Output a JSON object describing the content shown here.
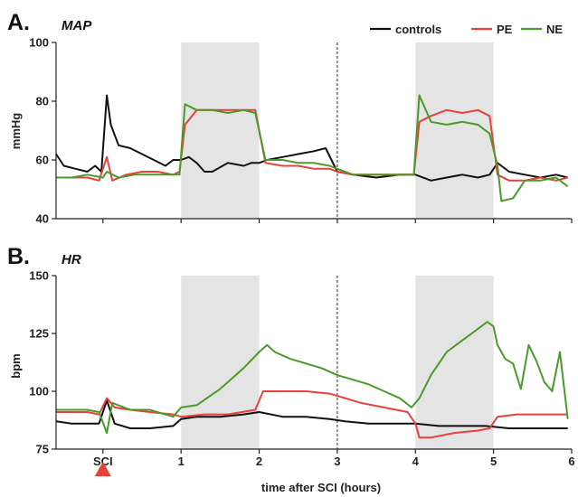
{
  "chart_data": [
    {
      "type": "line",
      "panel_letter": "A.",
      "title": "MAP",
      "ylabel": "mmHg",
      "xlabel": "",
      "xlim": [
        -0.6,
        6
      ],
      "ylim": [
        40,
        100
      ],
      "yticks": [
        40,
        60,
        80,
        100
      ],
      "xticks": [
        {
          "value": 0,
          "label": ""
        },
        {
          "value": 1,
          "label": ""
        },
        {
          "value": 2,
          "label": ""
        },
        {
          "value": 3,
          "label": ""
        },
        {
          "value": 4,
          "label": ""
        },
        {
          "value": 5,
          "label": ""
        },
        {
          "value": 6,
          "label": ""
        }
      ],
      "shaded_x_ranges": [
        [
          1,
          2
        ],
        [
          4,
          5
        ]
      ],
      "dashed_vline_x": 3,
      "legend": {
        "placement": "top-right",
        "entries": [
          "controls",
          "PE",
          "NE"
        ]
      },
      "series": [
        {
          "name": "controls",
          "color": "#111111",
          "points": [
            [
              -0.6,
              62
            ],
            [
              -0.5,
              58
            ],
            [
              -0.35,
              57
            ],
            [
              -0.2,
              56
            ],
            [
              -0.1,
              58
            ],
            [
              -0.02,
              56
            ],
            [
              0.05,
              82
            ],
            [
              0.1,
              72
            ],
            [
              0.2,
              65
            ],
            [
              0.35,
              64
            ],
            [
              0.5,
              62
            ],
            [
              0.65,
              60
            ],
            [
              0.8,
              58
            ],
            [
              0.9,
              60
            ],
            [
              1.0,
              60
            ],
            [
              1.1,
              61
            ],
            [
              1.2,
              59
            ],
            [
              1.3,
              56
            ],
            [
              1.4,
              56
            ],
            [
              1.6,
              59
            ],
            [
              1.8,
              58
            ],
            [
              1.9,
              59
            ],
            [
              2.0,
              59
            ],
            [
              2.1,
              60
            ],
            [
              2.3,
              61
            ],
            [
              2.5,
              62
            ],
            [
              2.7,
              63
            ],
            [
              2.85,
              64
            ],
            [
              3.0,
              56
            ],
            [
              3.2,
              55
            ],
            [
              3.5,
              54
            ],
            [
              3.8,
              55
            ],
            [
              4.0,
              55
            ],
            [
              4.2,
              53
            ],
            [
              4.4,
              54
            ],
            [
              4.6,
              55
            ],
            [
              4.8,
              54
            ],
            [
              4.95,
              55
            ],
            [
              5.05,
              59
            ],
            [
              5.2,
              56
            ],
            [
              5.4,
              55
            ],
            [
              5.6,
              54
            ],
            [
              5.8,
              55
            ],
            [
              5.95,
              54
            ]
          ]
        },
        {
          "name": "PE",
          "color": "#e8413a",
          "points": [
            [
              -0.6,
              54
            ],
            [
              -0.4,
              54
            ],
            [
              -0.2,
              54
            ],
            [
              -0.05,
              53
            ],
            [
              0.05,
              61
            ],
            [
              0.12,
              53
            ],
            [
              0.3,
              55
            ],
            [
              0.5,
              56
            ],
            [
              0.7,
              56
            ],
            [
              0.9,
              55
            ],
            [
              0.98,
              56
            ],
            [
              1.05,
              72
            ],
            [
              1.2,
              77
            ],
            [
              1.4,
              77
            ],
            [
              1.6,
              77
            ],
            [
              1.8,
              77
            ],
            [
              1.95,
              77
            ],
            [
              2.08,
              59
            ],
            [
              2.3,
              58
            ],
            [
              2.5,
              58
            ],
            [
              2.7,
              57
            ],
            [
              2.9,
              57
            ],
            [
              3.0,
              56
            ],
            [
              3.2,
              55
            ],
            [
              3.5,
              55
            ],
            [
              3.8,
              55
            ],
            [
              3.98,
              55
            ],
            [
              4.05,
              73
            ],
            [
              4.2,
              75
            ],
            [
              4.4,
              77
            ],
            [
              4.6,
              76
            ],
            [
              4.8,
              77
            ],
            [
              4.95,
              75
            ],
            [
              5.05,
              55
            ],
            [
              5.2,
              53
            ],
            [
              5.4,
              53
            ],
            [
              5.6,
              54
            ],
            [
              5.8,
              53
            ],
            [
              5.95,
              54
            ]
          ]
        },
        {
          "name": "NE",
          "color": "#4a9a2a",
          "points": [
            [
              -0.6,
              54
            ],
            [
              -0.4,
              54
            ],
            [
              -0.2,
              55
            ],
            [
              0.0,
              54
            ],
            [
              0.05,
              56
            ],
            [
              0.2,
              54
            ],
            [
              0.4,
              55
            ],
            [
              0.6,
              55
            ],
            [
              0.8,
              55
            ],
            [
              0.98,
              55
            ],
            [
              1.05,
              79
            ],
            [
              1.2,
              77
            ],
            [
              1.4,
              77
            ],
            [
              1.6,
              76
            ],
            [
              1.8,
              77
            ],
            [
              1.95,
              76
            ],
            [
              2.08,
              60
            ],
            [
              2.3,
              60
            ],
            [
              2.5,
              59
            ],
            [
              2.7,
              59
            ],
            [
              2.9,
              58
            ],
            [
              3.0,
              57
            ],
            [
              3.2,
              55
            ],
            [
              3.5,
              55
            ],
            [
              3.8,
              55
            ],
            [
              3.98,
              55
            ],
            [
              4.05,
              82
            ],
            [
              4.2,
              73
            ],
            [
              4.4,
              72
            ],
            [
              4.6,
              73
            ],
            [
              4.8,
              72
            ],
            [
              4.95,
              69
            ],
            [
              5.05,
              58
            ],
            [
              5.1,
              46
            ],
            [
              5.25,
              47
            ],
            [
              5.4,
              53
            ],
            [
              5.6,
              53
            ],
            [
              5.8,
              54
            ],
            [
              5.95,
              51
            ]
          ]
        }
      ]
    },
    {
      "type": "line",
      "panel_letter": "B.",
      "title": "HR",
      "ylabel": "bpm",
      "xlabel": "time after SCI (hours)",
      "xlim": [
        -0.6,
        6
      ],
      "ylim": [
        75,
        150
      ],
      "yticks": [
        75,
        100,
        125,
        150
      ],
      "xticks": [
        {
          "value": 0,
          "label": "SCI"
        },
        {
          "value": 1,
          "label": "1"
        },
        {
          "value": 2,
          "label": "2"
        },
        {
          "value": 3,
          "label": "3"
        },
        {
          "value": 4,
          "label": "4"
        },
        {
          "value": 5,
          "label": "5"
        },
        {
          "value": 6,
          "label": "6"
        }
      ],
      "shaded_x_ranges": [
        [
          1,
          2
        ],
        [
          4,
          5
        ]
      ],
      "dashed_vline_x": 3,
      "marker": {
        "x": 0,
        "shape": "triangle-up",
        "color": "#e8413a"
      },
      "series": [
        {
          "name": "controls",
          "color": "#111111",
          "points": [
            [
              -0.6,
              87
            ],
            [
              -0.4,
              86
            ],
            [
              -0.2,
              86
            ],
            [
              -0.05,
              86
            ],
            [
              0.05,
              96
            ],
            [
              0.15,
              86
            ],
            [
              0.35,
              84
            ],
            [
              0.6,
              84
            ],
            [
              0.9,
              85
            ],
            [
              1.0,
              88
            ],
            [
              1.2,
              89
            ],
            [
              1.5,
              89
            ],
            [
              1.8,
              90
            ],
            [
              2.0,
              91
            ],
            [
              2.3,
              89
            ],
            [
              2.6,
              89
            ],
            [
              2.9,
              88
            ],
            [
              3.1,
              87
            ],
            [
              3.4,
              86
            ],
            [
              3.7,
              86
            ],
            [
              4.0,
              86
            ],
            [
              4.3,
              85
            ],
            [
              4.6,
              85
            ],
            [
              4.9,
              85
            ],
            [
              5.2,
              84
            ],
            [
              5.5,
              84
            ],
            [
              5.8,
              84
            ],
            [
              5.95,
              84
            ]
          ]
        },
        {
          "name": "PE",
          "color": "#e8413a",
          "points": [
            [
              -0.6,
              91
            ],
            [
              -0.4,
              91
            ],
            [
              -0.2,
              91
            ],
            [
              -0.05,
              90
            ],
            [
              0.05,
              97
            ],
            [
              0.15,
              93
            ],
            [
              0.35,
              92
            ],
            [
              0.6,
              91
            ],
            [
              0.9,
              90
            ],
            [
              1.0,
              89
            ],
            [
              1.3,
              90
            ],
            [
              1.6,
              90
            ],
            [
              1.95,
              92
            ],
            [
              2.05,
              100
            ],
            [
              2.3,
              100
            ],
            [
              2.6,
              100
            ],
            [
              2.9,
              99
            ],
            [
              3.0,
              98
            ],
            [
              3.3,
              95
            ],
            [
              3.6,
              93
            ],
            [
              3.9,
              91
            ],
            [
              4.0,
              86
            ],
            [
              4.05,
              80
            ],
            [
              4.2,
              80
            ],
            [
              4.5,
              82
            ],
            [
              4.8,
              83
            ],
            [
              4.95,
              84
            ],
            [
              5.05,
              89
            ],
            [
              5.3,
              90
            ],
            [
              5.6,
              90
            ],
            [
              5.95,
              90
            ]
          ]
        },
        {
          "name": "NE",
          "color": "#4a9a2a",
          "points": [
            [
              -0.6,
              92
            ],
            [
              -0.4,
              92
            ],
            [
              -0.2,
              92
            ],
            [
              -0.05,
              91
            ],
            [
              0.05,
              82
            ],
            [
              0.12,
              95
            ],
            [
              0.35,
              92
            ],
            [
              0.6,
              92
            ],
            [
              0.9,
              89
            ],
            [
              1.0,
              93
            ],
            [
              1.2,
              94
            ],
            [
              1.5,
              101
            ],
            [
              1.8,
              110
            ],
            [
              2.0,
              117
            ],
            [
              2.1,
              120
            ],
            [
              2.2,
              117
            ],
            [
              2.4,
              114
            ],
            [
              2.6,
              112
            ],
            [
              2.8,
              110
            ],
            [
              3.0,
              107
            ],
            [
              3.2,
              105
            ],
            [
              3.4,
              103
            ],
            [
              3.6,
              100
            ],
            [
              3.8,
              97
            ],
            [
              3.95,
              93
            ],
            [
              4.05,
              97
            ],
            [
              4.2,
              107
            ],
            [
              4.4,
              117
            ],
            [
              4.6,
              122
            ],
            [
              4.8,
              127
            ],
            [
              4.92,
              130
            ],
            [
              5.0,
              128
            ],
            [
              5.05,
              120
            ],
            [
              5.15,
              114
            ],
            [
              5.25,
              112
            ],
            [
              5.35,
              101
            ],
            [
              5.45,
              120
            ],
            [
              5.55,
              113
            ],
            [
              5.65,
              104
            ],
            [
              5.75,
              100
            ],
            [
              5.85,
              117
            ],
            [
              5.95,
              88
            ]
          ]
        }
      ]
    }
  ]
}
